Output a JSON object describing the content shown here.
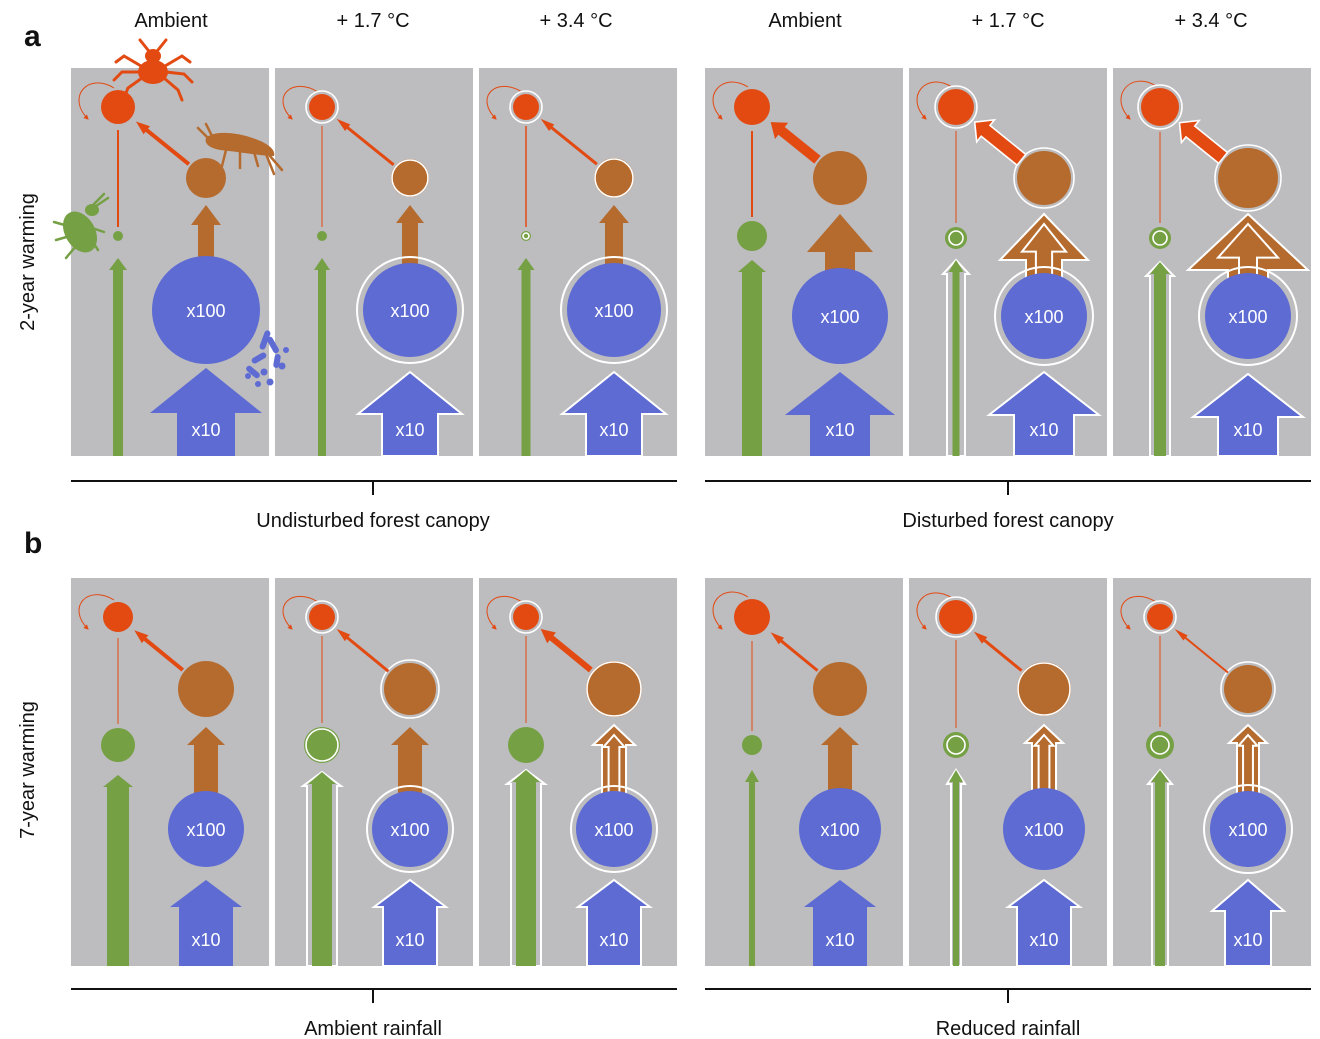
{
  "panels": [
    {
      "letter": "a",
      "row_label": "2-year warming",
      "group_labels": [
        "Undisturbed forest canopy",
        "Disturbed forest canopy"
      ]
    },
    {
      "letter": "b",
      "row_label": "7-year warming",
      "group_labels": [
        "Ambient rainfall",
        "Reduced rainfall"
      ]
    }
  ],
  "column_headers": [
    "Ambient",
    "+ 1.7 °C",
    "+ 3.4 °C",
    "Ambient",
    "+ 1.7 °C",
    "+ 3.4 °C"
  ],
  "node_labels": {
    "microbe_pool": "x100",
    "microbe_flux": "x10"
  },
  "colors": {
    "background": "#bdbcbf",
    "predator": "#e24a12",
    "detritivore": "#b56b2e",
    "herbivore": "#75a044",
    "microbe": "#5d6bd3",
    "outline": "#ffffff"
  },
  "icons": [
    "predatory-mite-icon",
    "springtail-icon",
    "aphid-icon",
    "bacteria-icon"
  ]
}
